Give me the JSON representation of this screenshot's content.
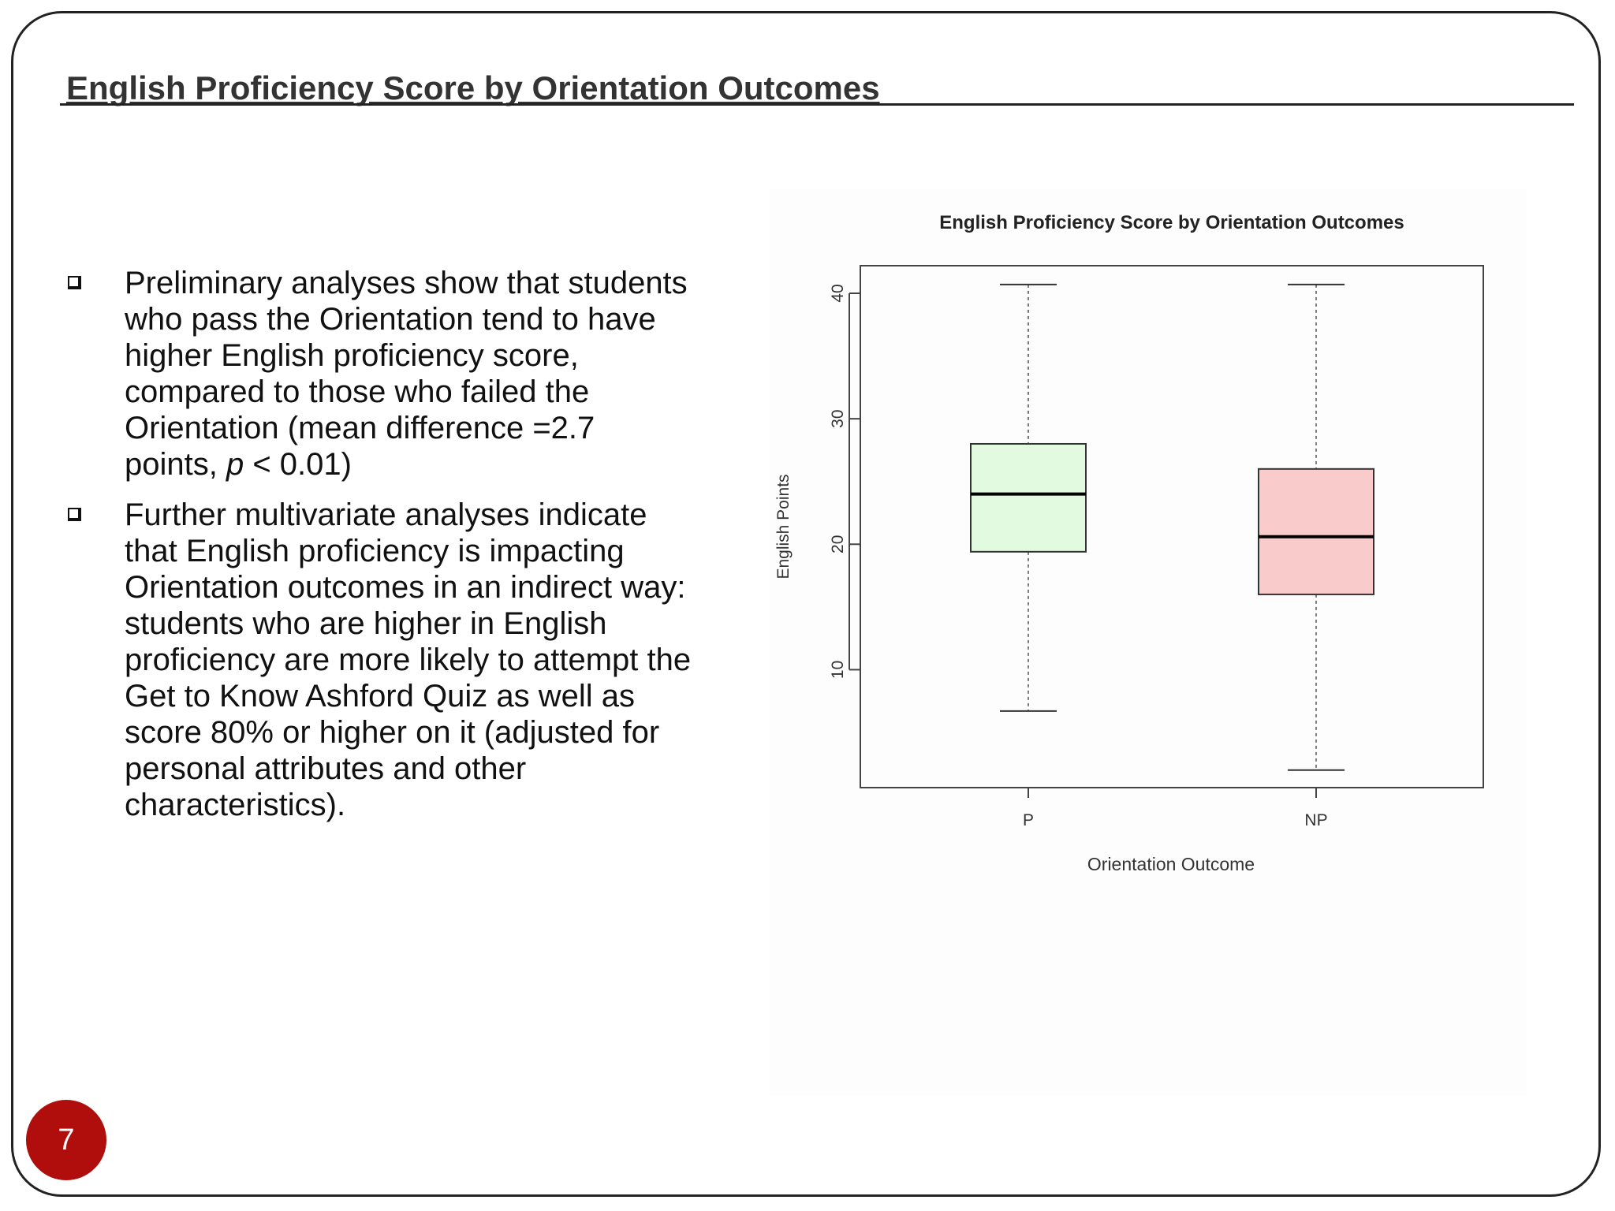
{
  "slide": {
    "title": "English Proficiency Score by Orientation Outcomes",
    "page_number": "7"
  },
  "bullets": [
    {
      "text_before": "Preliminary analyses show that students who pass the Orientation tend to have higher English proficiency score, compared to those who failed the Orientation (mean difference =2.7 points, ",
      "italic": "p",
      "text_after": " < 0.01)"
    },
    {
      "text": "Further multivariate analyses indicate that English proficiency is impacting Orientation outcomes in an indirect way: students who are higher in English proficiency are more likely to attempt the Get to Know Ashford Quiz as well as score 80% or higher on it (adjusted for personal attributes and other characteristics)."
    }
  ],
  "chart_data": {
    "type": "boxplot",
    "title": "English Proficiency Score by Orientation Outcomes",
    "xlabel": "Orientation Outcome",
    "ylabel": "English Points",
    "categories": [
      "P",
      "NP"
    ],
    "boxes": [
      {
        "category": "P",
        "whisker_low": 6.7,
        "q1": 19.4,
        "median": 24.0,
        "q3": 28.0,
        "whisker_high": 40.7,
        "fill": "#e2fbe0"
      },
      {
        "category": "NP",
        "whisker_low": 2.0,
        "q1": 16.0,
        "median": 20.6,
        "q3": 26.0,
        "whisker_high": 40.7,
        "fill": "#f9cbcb"
      }
    ],
    "yticks": [
      10,
      20,
      30,
      40
    ],
    "ylim": [
      0.6,
      42.2
    ],
    "grid": false,
    "legend": "none"
  }
}
